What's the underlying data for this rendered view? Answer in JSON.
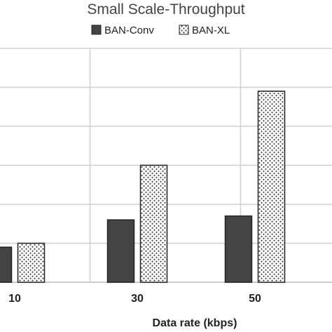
{
  "chart_data": {
    "type": "bar",
    "title": "Small Scale-Throughput",
    "xlabel": "Data rate (kbps)",
    "ylabel": "",
    "categories": [
      "10",
      "30",
      "50"
    ],
    "series": [
      {
        "name": "BAN-Conv",
        "values": [
          0.9,
          1.6,
          1.7
        ],
        "fill": "#444444",
        "pattern": "solid"
      },
      {
        "name": "BAN-XL",
        "values": [
          1.0,
          3.0,
          4.9
        ],
        "fill": "#ffffff",
        "pattern": "dots"
      }
    ],
    "ylim": [
      0,
      6
    ],
    "grid": true,
    "legend_position": "top"
  }
}
